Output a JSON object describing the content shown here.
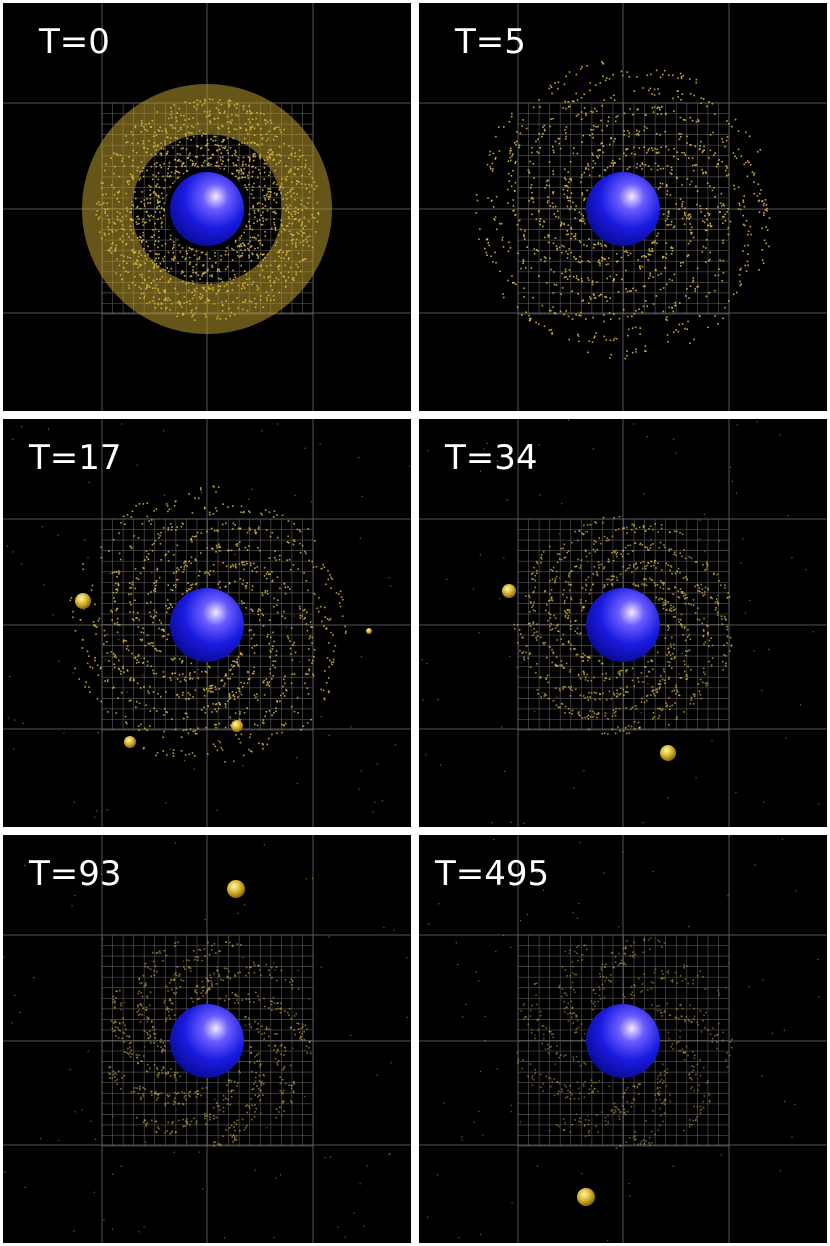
{
  "panels": [
    {
      "label": "T=0"
    },
    {
      "label": "T=5"
    },
    {
      "label": "T=17"
    },
    {
      "label": "T=34"
    },
    {
      "label": "T=93"
    },
    {
      "label": "T=495"
    }
  ]
}
